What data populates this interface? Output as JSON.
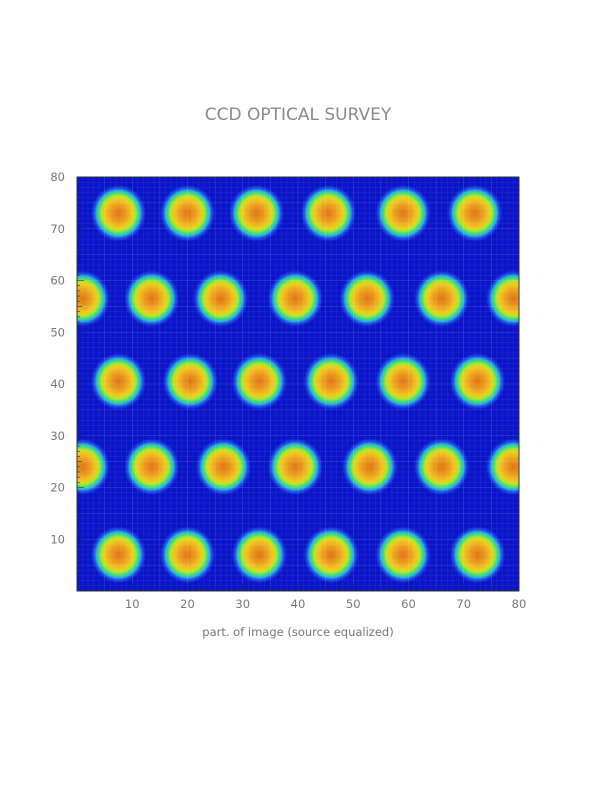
{
  "chart_data": {
    "type": "heatmap",
    "title": "CCD OPTICAL SURVEY",
    "xlabel": "part. of image (source equalized)",
    "ylabel": "",
    "xlim": [
      0,
      80
    ],
    "ylim": [
      0,
      80
    ],
    "x_ticks": [
      10,
      20,
      30,
      40,
      50,
      60,
      70,
      80
    ],
    "y_ticks": [
      10,
      20,
      30,
      40,
      50,
      60,
      70,
      80
    ],
    "colormap": [
      "#0a14c8",
      "#1e50e6",
      "#28b4dc",
      "#3cdc78",
      "#b4e628",
      "#f0c81e",
      "#eb9b1e",
      "#e07314"
    ],
    "background_color": "#0a14c8",
    "spots": [
      {
        "x": 7.5,
        "y": 73,
        "peak": 0.92
      },
      {
        "x": 20,
        "y": 73,
        "peak": 0.92
      },
      {
        "x": 32.5,
        "y": 73,
        "peak": 0.93
      },
      {
        "x": 45.5,
        "y": 73,
        "peak": 0.95
      },
      {
        "x": 59,
        "y": 73,
        "peak": 0.95
      },
      {
        "x": 72,
        "y": 73,
        "peak": 0.96
      },
      {
        "x": 1,
        "y": 56.5,
        "peak": 0.85
      },
      {
        "x": 13.5,
        "y": 56.5,
        "peak": 0.92
      },
      {
        "x": 26,
        "y": 56.5,
        "peak": 0.93
      },
      {
        "x": 39.5,
        "y": 56.5,
        "peak": 0.93
      },
      {
        "x": 52.5,
        "y": 56.5,
        "peak": 0.96
      },
      {
        "x": 66,
        "y": 56.5,
        "peak": 0.95
      },
      {
        "x": 79,
        "y": 56.5,
        "peak": 0.93
      },
      {
        "x": 7.5,
        "y": 40.5,
        "peak": 0.93
      },
      {
        "x": 20.5,
        "y": 40.5,
        "peak": 0.92
      },
      {
        "x": 33,
        "y": 40.5,
        "peak": 0.95
      },
      {
        "x": 46,
        "y": 40.5,
        "peak": 0.97
      },
      {
        "x": 59,
        "y": 40.5,
        "peak": 0.96
      },
      {
        "x": 72.5,
        "y": 40.5,
        "peak": 0.95
      },
      {
        "x": 1,
        "y": 24,
        "peak": 0.88
      },
      {
        "x": 13.5,
        "y": 24,
        "peak": 0.95
      },
      {
        "x": 26.5,
        "y": 24,
        "peak": 0.95
      },
      {
        "x": 39.5,
        "y": 24,
        "peak": 0.96
      },
      {
        "x": 53,
        "y": 24,
        "peak": 0.98
      },
      {
        "x": 66,
        "y": 24,
        "peak": 0.96
      },
      {
        "x": 79,
        "y": 24,
        "peak": 0.96
      },
      {
        "x": 7.5,
        "y": 7,
        "peak": 0.96
      },
      {
        "x": 20,
        "y": 7,
        "peak": 0.95
      },
      {
        "x": 33,
        "y": 7,
        "peak": 0.95
      },
      {
        "x": 46,
        "y": 7,
        "peak": 0.96
      },
      {
        "x": 59,
        "y": 7,
        "peak": 0.96
      },
      {
        "x": 72.5,
        "y": 7,
        "peak": 0.98
      }
    ],
    "spot_radius": [
      5,
      5.5
    ],
    "grid": true
  }
}
